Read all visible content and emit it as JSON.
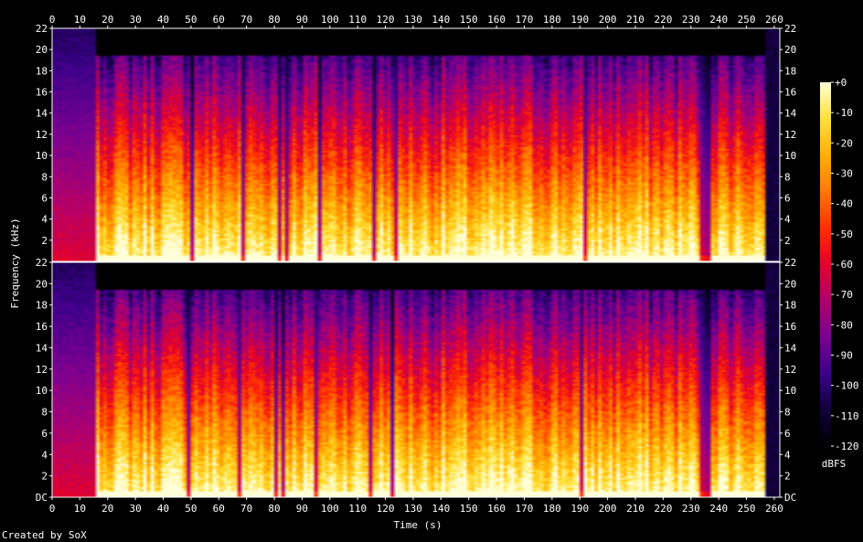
{
  "chart_data": {
    "type": "heatmap",
    "title": "",
    "xlabel": "Time (s)",
    "ylabel": "Frequency (kHz)",
    "x_ticks": [
      "0",
      "10",
      "20",
      "30",
      "40",
      "50",
      "60",
      "70",
      "80",
      "90",
      "100",
      "110",
      "120",
      "130",
      "140",
      "150",
      "160",
      "170",
      "180",
      "190",
      "200",
      "210",
      "220",
      "230",
      "240",
      "250",
      "260"
    ],
    "x_tick_values": [
      0,
      10,
      20,
      30,
      40,
      50,
      60,
      70,
      80,
      90,
      100,
      110,
      120,
      130,
      140,
      150,
      160,
      170,
      180,
      190,
      200,
      210,
      220,
      230,
      240,
      250,
      260
    ],
    "xlim": [
      0,
      262
    ],
    "channels": [
      {
        "y_ticks": [
          "2",
          "4",
          "6",
          "8",
          "10",
          "12",
          "14",
          "16",
          "18",
          "20",
          "22"
        ],
        "y_tick_values": [
          2,
          4,
          6,
          8,
          10,
          12,
          14,
          16,
          18,
          20,
          22
        ]
      },
      {
        "y_ticks": [
          "DC",
          "2",
          "4",
          "6",
          "8",
          "10",
          "12",
          "14",
          "16",
          "18",
          "20",
          "22"
        ],
        "y_tick_values": [
          0,
          2,
          4,
          6,
          8,
          10,
          12,
          14,
          16,
          18,
          20,
          22
        ]
      }
    ],
    "ylim": [
      0,
      22
    ],
    "colorbar": {
      "label": "dBFS",
      "ticks": [
        "+0",
        "-10",
        "-20",
        "-30",
        "-40",
        "-50",
        "-60",
        "-70",
        "-80",
        "-90",
        "-100",
        "-110",
        "-120"
      ],
      "tick_values": [
        0,
        -10,
        -20,
        -30,
        -40,
        -50,
        -60,
        -70,
        -80,
        -90,
        -100,
        -110,
        -120
      ],
      "range": [
        -120,
        0
      ]
    },
    "colors": [
      "#000000",
      "#10003a",
      "#3c008a",
      "#7a0090",
      "#b0006e",
      "#e4002c",
      "#ff3000",
      "#ff7800",
      "#ffb000",
      "#ffe23a",
      "#ffffd8"
    ]
  },
  "footer": {
    "credit": "Created by SoX"
  }
}
